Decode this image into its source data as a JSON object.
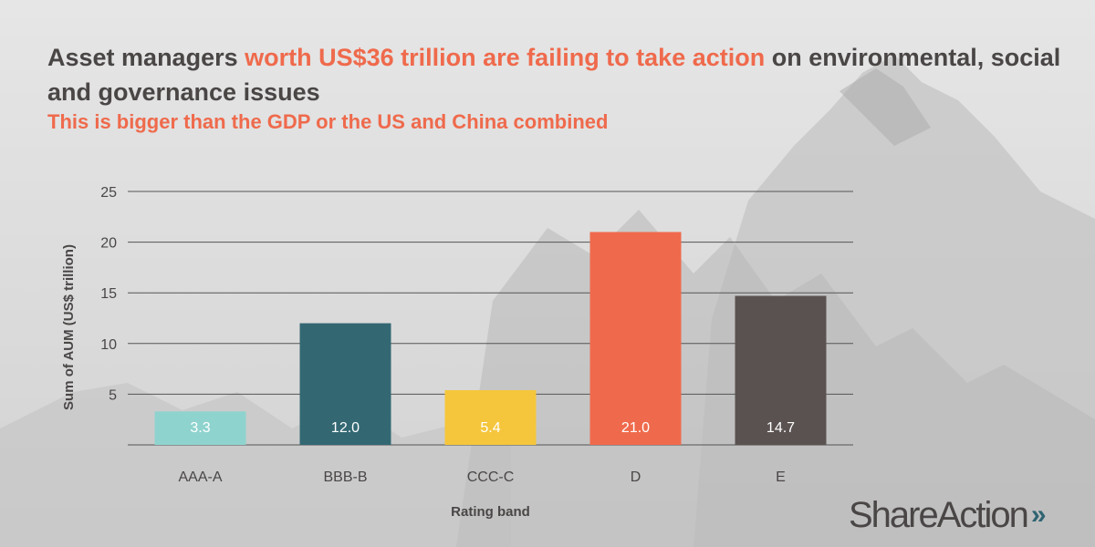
{
  "headline": {
    "part1": "Asset managers ",
    "highlight": "worth US$36 trillion are failing to take action",
    "part2": " on environmental, social and governance issues"
  },
  "subhead": "This is bigger than the GDP or the US and China combined",
  "chart_data": {
    "type": "bar",
    "categories": [
      "AAA-A",
      "BBB-B",
      "CCC-C",
      "D",
      "E"
    ],
    "values": [
      3.3,
      12.0,
      5.4,
      21.0,
      14.7
    ],
    "value_labels": [
      "3.3",
      "12.0",
      "5.4",
      "21.0",
      "14.7"
    ],
    "colors": [
      "#8fd3ce",
      "#336873",
      "#f5c63c",
      "#ef6a4c",
      "#5a5251"
    ],
    "label_colors": [
      "#ffffff",
      "#ffffff",
      "#ffffff",
      "#ffffff",
      "#ffffff"
    ],
    "xlabel": "Rating band",
    "ylabel": "Sum of AUM (US$ trillion)",
    "ylim": [
      0,
      25
    ],
    "yticks": [
      5,
      10,
      15,
      20,
      25
    ],
    "grid": true
  },
  "logo": {
    "text": "ShareAction",
    "chevrons": "»"
  }
}
